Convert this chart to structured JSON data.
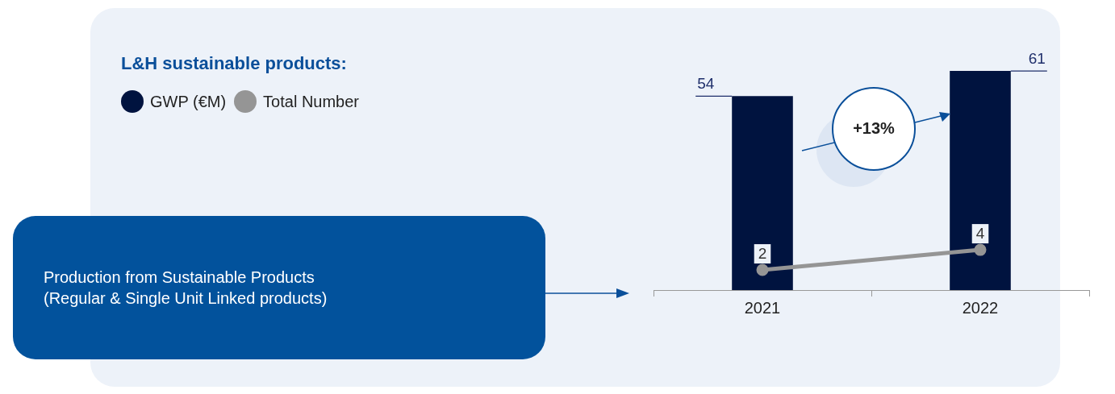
{
  "chart_data": {
    "type": "bar",
    "title": "L&H sustainable products:",
    "categories": [
      "2021",
      "2022"
    ],
    "series": [
      {
        "name": "GWP (€M)",
        "color": "#00133f",
        "values": [
          54,
          61
        ]
      },
      {
        "name": "Total Number",
        "color": "#959595",
        "values": [
          2,
          4
        ],
        "type": "line",
        "axis": "y2"
      }
    ],
    "data_labels": true,
    "legend": "top left",
    "tick_labels": "x",
    "grid": false,
    "marker": "circle",
    "annotations": [
      "+13%",
      "Production from Sustainable Products\n(Regular & Single Unit Linked products)"
    ]
  }
}
